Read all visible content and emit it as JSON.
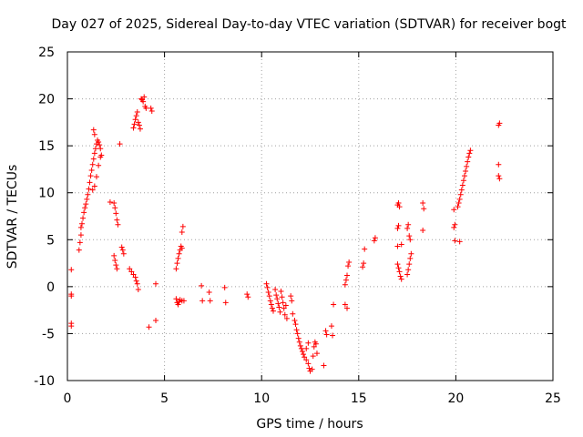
{
  "chart_data": {
    "type": "scatter",
    "title": "Day 027 of 2025, Sidereal Day-to-day VTEC variation (SDTVAR) for receiver bogt",
    "xlabel": "GPS time / hours",
    "ylabel": "SDTVAR / TECUs",
    "xlim": [
      0,
      25
    ],
    "ylim": [
      -10,
      25
    ],
    "xticks": [
      "0",
      "5",
      "10",
      "15",
      "20",
      "25"
    ],
    "yticks": [
      "-10",
      "-5",
      "0",
      "5",
      "10",
      "15",
      "20",
      "25"
    ],
    "grid": true,
    "marker": "plus",
    "color": "#ff0000",
    "series": [
      {
        "name": "SDTVAR",
        "points": [
          [
            0.2,
            1.8
          ],
          [
            0.2,
            -0.8
          ],
          [
            0.2,
            -1.0
          ],
          [
            0.2,
            -3.9
          ],
          [
            0.2,
            -4.2
          ],
          [
            0.6,
            3.9
          ],
          [
            0.65,
            4.7
          ],
          [
            0.7,
            5.5
          ],
          [
            0.7,
            6.3
          ],
          [
            0.75,
            6.7
          ],
          [
            0.8,
            7.3
          ],
          [
            0.85,
            7.9
          ],
          [
            0.9,
            8.4
          ],
          [
            0.95,
            8.8
          ],
          [
            1.0,
            9.3
          ],
          [
            1.05,
            9.8
          ],
          [
            1.1,
            10.4
          ],
          [
            1.15,
            11.1
          ],
          [
            1.2,
            11.8
          ],
          [
            1.25,
            12.4
          ],
          [
            1.3,
            13.0
          ],
          [
            1.35,
            13.6
          ],
          [
            1.4,
            14.2
          ],
          [
            1.45,
            14.7
          ],
          [
            1.5,
            15.2
          ],
          [
            1.55,
            15.6
          ],
          [
            1.35,
            16.7
          ],
          [
            1.4,
            16.2
          ],
          [
            1.6,
            15.4
          ],
          [
            1.65,
            15.1
          ],
          [
            1.7,
            14.7
          ],
          [
            1.7,
            13.8
          ],
          [
            1.75,
            14.0
          ],
          [
            1.6,
            12.9
          ],
          [
            1.5,
            11.7
          ],
          [
            1.4,
            10.7
          ],
          [
            1.3,
            10.3
          ],
          [
            2.2,
            9.0
          ],
          [
            2.4,
            8.9
          ],
          [
            2.45,
            8.4
          ],
          [
            2.5,
            7.8
          ],
          [
            2.55,
            7.1
          ],
          [
            2.6,
            6.6
          ],
          [
            2.7,
            15.2
          ],
          [
            2.4,
            3.3
          ],
          [
            2.45,
            2.8
          ],
          [
            2.5,
            2.3
          ],
          [
            2.55,
            1.9
          ],
          [
            2.8,
            4.2
          ],
          [
            2.85,
            3.9
          ],
          [
            2.9,
            3.5
          ],
          [
            3.2,
            1.9
          ],
          [
            3.3,
            1.6
          ],
          [
            3.4,
            1.3
          ],
          [
            3.5,
            1.0
          ],
          [
            3.55,
            0.6
          ],
          [
            3.6,
            0.3
          ],
          [
            3.65,
            -0.3
          ],
          [
            3.4,
            16.9
          ],
          [
            3.45,
            17.3
          ],
          [
            3.5,
            17.8
          ],
          [
            3.55,
            18.2
          ],
          [
            3.6,
            18.6
          ],
          [
            3.65,
            17.5
          ],
          [
            3.7,
            17.2
          ],
          [
            3.75,
            16.8
          ],
          [
            3.8,
            20.0
          ],
          [
            3.85,
            19.9
          ],
          [
            3.9,
            19.7
          ],
          [
            3.95,
            20.2
          ],
          [
            4.0,
            19.2
          ],
          [
            4.05,
            19.0
          ],
          [
            4.3,
            19.0
          ],
          [
            4.35,
            18.7
          ],
          [
            4.2,
            -4.3
          ],
          [
            4.55,
            -3.6
          ],
          [
            4.55,
            0.3
          ],
          [
            5.6,
            1.9
          ],
          [
            5.65,
            2.5
          ],
          [
            5.7,
            3.0
          ],
          [
            5.75,
            3.5
          ],
          [
            5.8,
            3.9
          ],
          [
            5.85,
            4.3
          ],
          [
            5.9,
            4.1
          ],
          [
            5.9,
            5.8
          ],
          [
            5.95,
            6.4
          ],
          [
            5.6,
            -1.3
          ],
          [
            5.65,
            -1.7
          ],
          [
            5.7,
            -1.9
          ],
          [
            5.75,
            -1.6
          ],
          [
            5.8,
            -1.4
          ],
          [
            5.9,
            -1.5
          ],
          [
            6.0,
            -1.5
          ],
          [
            6.9,
            0.1
          ],
          [
            6.95,
            -1.5
          ],
          [
            7.3,
            -0.6
          ],
          [
            7.35,
            -1.5
          ],
          [
            8.1,
            -0.1
          ],
          [
            8.15,
            -1.7
          ],
          [
            9.25,
            -0.8
          ],
          [
            9.3,
            -1.1
          ],
          [
            10.25,
            0.3
          ],
          [
            10.3,
            -0.1
          ],
          [
            10.35,
            -0.6
          ],
          [
            10.4,
            -1.0
          ],
          [
            10.45,
            -1.5
          ],
          [
            10.5,
            -1.9
          ],
          [
            10.55,
            -2.3
          ],
          [
            10.6,
            -2.6
          ],
          [
            10.7,
            -0.3
          ],
          [
            10.75,
            -0.9
          ],
          [
            10.8,
            -1.3
          ],
          [
            10.85,
            -1.8
          ],
          [
            10.9,
            -2.2
          ],
          [
            10.95,
            -2.7
          ],
          [
            11.0,
            -0.5
          ],
          [
            11.05,
            -1.1
          ],
          [
            11.1,
            -1.7
          ],
          [
            11.15,
            -2.3
          ],
          [
            11.2,
            -3.0
          ],
          [
            11.25,
            -2.0
          ],
          [
            11.3,
            -3.4
          ],
          [
            11.5,
            -1.0
          ],
          [
            11.55,
            -1.5
          ],
          [
            11.6,
            -2.9
          ],
          [
            11.7,
            -3.6
          ],
          [
            11.75,
            -4.0
          ],
          [
            11.8,
            -4.6
          ],
          [
            11.85,
            -5.0
          ],
          [
            11.9,
            -5.5
          ],
          [
            11.95,
            -5.9
          ],
          [
            12.0,
            -6.3
          ],
          [
            12.05,
            -6.6
          ],
          [
            12.1,
            -6.9
          ],
          [
            12.15,
            -7.2
          ],
          [
            12.2,
            -7.5
          ],
          [
            12.3,
            -7.8
          ],
          [
            12.4,
            -8.2
          ],
          [
            12.45,
            -8.7
          ],
          [
            12.5,
            -9.0
          ],
          [
            12.6,
            -8.8
          ],
          [
            12.65,
            -7.4
          ],
          [
            12.7,
            -6.4
          ],
          [
            12.75,
            -5.9
          ],
          [
            12.8,
            -6.1
          ],
          [
            12.85,
            -7.1
          ],
          [
            12.4,
            -6.0
          ],
          [
            12.3,
            -6.6
          ],
          [
            13.2,
            -8.4
          ],
          [
            13.3,
            -4.7
          ],
          [
            13.35,
            -5.1
          ],
          [
            13.6,
            -4.2
          ],
          [
            13.65,
            -5.2
          ],
          [
            13.7,
            -1.9
          ],
          [
            14.3,
            0.2
          ],
          [
            14.35,
            0.7
          ],
          [
            14.4,
            1.2
          ],
          [
            14.45,
            2.2
          ],
          [
            14.5,
            2.6
          ],
          [
            14.3,
            -1.9
          ],
          [
            14.4,
            -2.3
          ],
          [
            15.2,
            2.1
          ],
          [
            15.25,
            2.5
          ],
          [
            15.3,
            4.0
          ],
          [
            15.8,
            4.9
          ],
          [
            15.85,
            5.2
          ],
          [
            17.0,
            6.2
          ],
          [
            17.05,
            6.5
          ],
          [
            17.0,
            8.7
          ],
          [
            17.05,
            8.9
          ],
          [
            17.1,
            8.5
          ],
          [
            17.0,
            2.4
          ],
          [
            17.05,
            2.0
          ],
          [
            17.1,
            1.6
          ],
          [
            17.15,
            1.1
          ],
          [
            17.2,
            4.5
          ],
          [
            17.0,
            4.3
          ],
          [
            17.2,
            0.8
          ],
          [
            17.5,
            1.3
          ],
          [
            17.55,
            1.8
          ],
          [
            17.6,
            2.4
          ],
          [
            17.65,
            3.0
          ],
          [
            17.7,
            3.5
          ],
          [
            17.5,
            6.2
          ],
          [
            17.55,
            6.6
          ],
          [
            17.6,
            5.4
          ],
          [
            17.65,
            5.0
          ],
          [
            18.3,
            8.9
          ],
          [
            18.35,
            8.3
          ],
          [
            18.3,
            6.0
          ],
          [
            19.9,
            6.3
          ],
          [
            19.95,
            6.6
          ],
          [
            19.9,
            8.2
          ],
          [
            19.95,
            4.9
          ],
          [
            20.2,
            4.8
          ],
          [
            20.1,
            8.5
          ],
          [
            20.15,
            8.9
          ],
          [
            20.2,
            9.3
          ],
          [
            20.25,
            9.8
          ],
          [
            20.3,
            10.3
          ],
          [
            20.35,
            10.8
          ],
          [
            20.4,
            11.3
          ],
          [
            20.45,
            11.8
          ],
          [
            20.5,
            12.3
          ],
          [
            20.55,
            12.8
          ],
          [
            20.6,
            13.3
          ],
          [
            20.65,
            13.8
          ],
          [
            20.7,
            14.2
          ],
          [
            20.75,
            14.5
          ],
          [
            22.2,
            17.2
          ],
          [
            22.25,
            17.4
          ],
          [
            22.2,
            13.0
          ],
          [
            22.2,
            11.8
          ],
          [
            22.25,
            11.5
          ]
        ]
      }
    ]
  }
}
